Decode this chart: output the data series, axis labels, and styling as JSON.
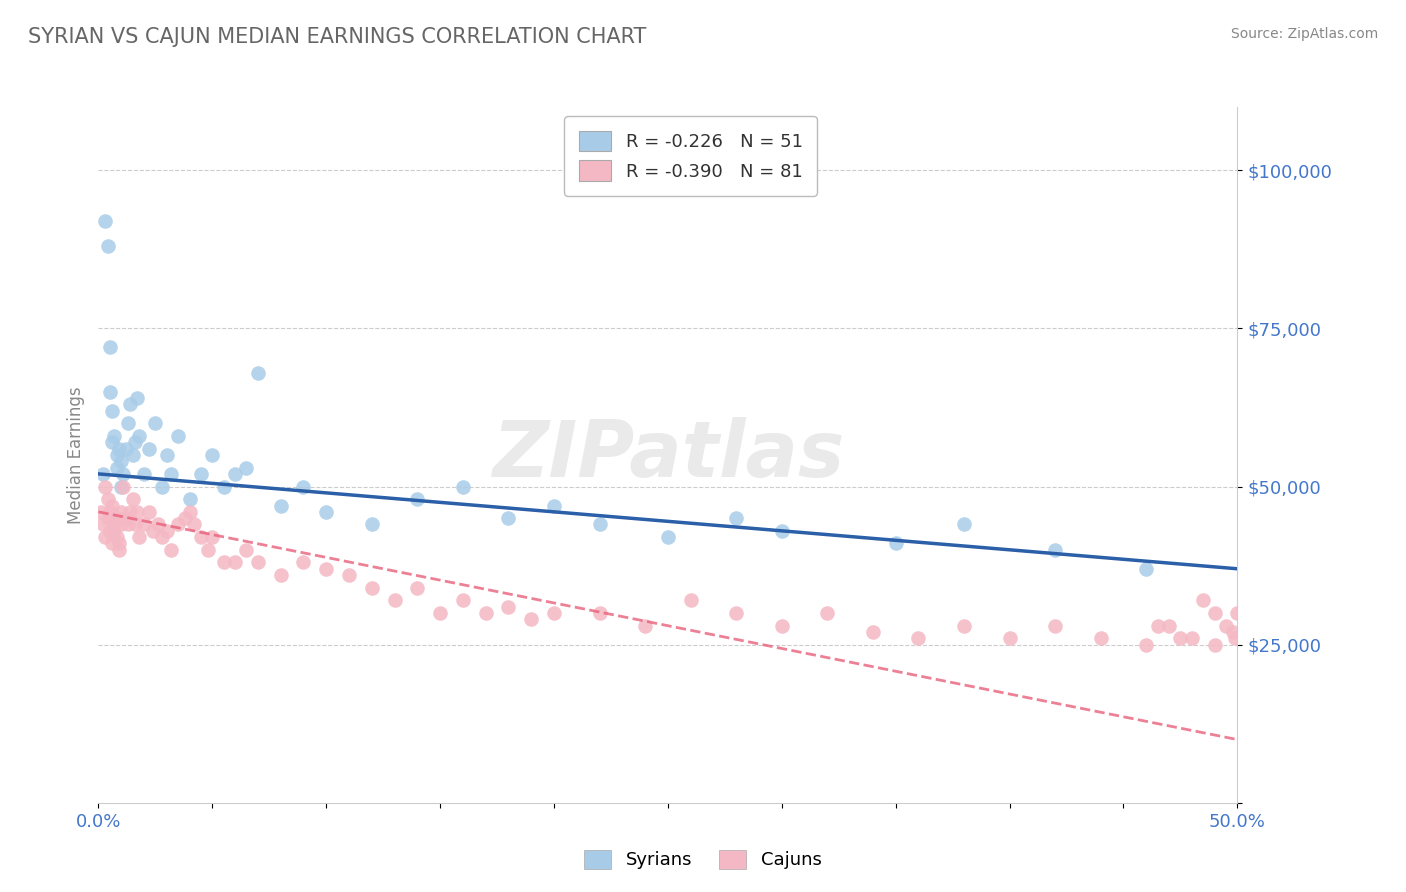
{
  "title": "SYRIAN VS CAJUN MEDIAN EARNINGS CORRELATION CHART",
  "source": "Source: ZipAtlas.com",
  "ylabel": "Median Earnings",
  "xlim": [
    0.0,
    0.5
  ],
  "ylim": [
    0,
    110000
  ],
  "xticks": [
    0.0,
    0.05,
    0.1,
    0.15,
    0.2,
    0.25,
    0.3,
    0.35,
    0.4,
    0.45,
    0.5
  ],
  "xticklabels": [
    "0.0%",
    "",
    "",
    "",
    "",
    "",
    "",
    "",
    "",
    "",
    "50.0%"
  ],
  "ytick_positions": [
    0,
    25000,
    50000,
    75000,
    100000
  ],
  "ytick_labels": [
    "",
    "$25,000",
    "$50,000",
    "$75,000",
    "$100,000"
  ],
  "syrian_color": "#a8cce8",
  "cajun_color": "#f4b8c4",
  "syrian_line_color": "#2b5fa8",
  "cajun_line_color": "#e8607a",
  "background_color": "#ffffff",
  "grid_color": "#cccccc",
  "title_color": "#666666",
  "axis_color": "#cccccc",
  "label_color": "#4477cc",
  "watermark": "ZIPatlas",
  "legend_label_color": "#333333",
  "legend_R_color": "#cc3333",
  "legend_N_color": "#4477cc",
  "legend_R_syrian": "-0.226",
  "legend_N_syrian": "51",
  "legend_R_cajun": "-0.390",
  "legend_N_cajun": "81",
  "syrian_scatter_x": [
    0.002,
    0.003,
    0.004,
    0.005,
    0.005,
    0.006,
    0.006,
    0.007,
    0.008,
    0.008,
    0.009,
    0.01,
    0.01,
    0.011,
    0.012,
    0.013,
    0.014,
    0.015,
    0.016,
    0.017,
    0.018,
    0.02,
    0.022,
    0.025,
    0.028,
    0.03,
    0.032,
    0.035,
    0.04,
    0.045,
    0.05,
    0.055,
    0.06,
    0.065,
    0.07,
    0.08,
    0.09,
    0.1,
    0.12,
    0.14,
    0.16,
    0.18,
    0.2,
    0.22,
    0.25,
    0.28,
    0.3,
    0.35,
    0.38,
    0.42,
    0.46
  ],
  "syrian_scatter_y": [
    52000,
    92000,
    88000,
    72000,
    65000,
    62000,
    57000,
    58000,
    55000,
    53000,
    56000,
    54000,
    50000,
    52000,
    56000,
    60000,
    63000,
    55000,
    57000,
    64000,
    58000,
    52000,
    56000,
    60000,
    50000,
    55000,
    52000,
    58000,
    48000,
    52000,
    55000,
    50000,
    52000,
    53000,
    68000,
    47000,
    50000,
    46000,
    44000,
    48000,
    50000,
    45000,
    47000,
    44000,
    42000,
    45000,
    43000,
    41000,
    44000,
    40000,
    37000
  ],
  "cajun_scatter_x": [
    0.001,
    0.002,
    0.003,
    0.003,
    0.004,
    0.004,
    0.005,
    0.005,
    0.006,
    0.006,
    0.007,
    0.007,
    0.008,
    0.008,
    0.009,
    0.009,
    0.01,
    0.01,
    0.011,
    0.012,
    0.013,
    0.014,
    0.015,
    0.016,
    0.017,
    0.018,
    0.02,
    0.022,
    0.024,
    0.026,
    0.028,
    0.03,
    0.032,
    0.035,
    0.038,
    0.04,
    0.042,
    0.045,
    0.048,
    0.05,
    0.055,
    0.06,
    0.065,
    0.07,
    0.08,
    0.09,
    0.1,
    0.11,
    0.12,
    0.13,
    0.14,
    0.15,
    0.16,
    0.17,
    0.18,
    0.19,
    0.2,
    0.22,
    0.24,
    0.26,
    0.28,
    0.3,
    0.32,
    0.34,
    0.36,
    0.38,
    0.4,
    0.42,
    0.44,
    0.46,
    0.47,
    0.48,
    0.49,
    0.495,
    0.498,
    0.499,
    0.5,
    0.49,
    0.485,
    0.475,
    0.465
  ],
  "cajun_scatter_y": [
    46000,
    44000,
    50000,
    42000,
    48000,
    45000,
    46000,
    43000,
    47000,
    41000,
    44000,
    43000,
    45000,
    42000,
    41000,
    40000,
    44000,
    46000,
    50000,
    45000,
    44000,
    46000,
    48000,
    44000,
    46000,
    42000,
    44000,
    46000,
    43000,
    44000,
    42000,
    43000,
    40000,
    44000,
    45000,
    46000,
    44000,
    42000,
    40000,
    42000,
    38000,
    38000,
    40000,
    38000,
    36000,
    38000,
    37000,
    36000,
    34000,
    32000,
    34000,
    30000,
    32000,
    30000,
    31000,
    29000,
    30000,
    30000,
    28000,
    32000,
    30000,
    28000,
    30000,
    27000,
    26000,
    28000,
    26000,
    28000,
    26000,
    25000,
    28000,
    26000,
    30000,
    28000,
    27000,
    26000,
    30000,
    25000,
    32000,
    26000,
    28000
  ]
}
